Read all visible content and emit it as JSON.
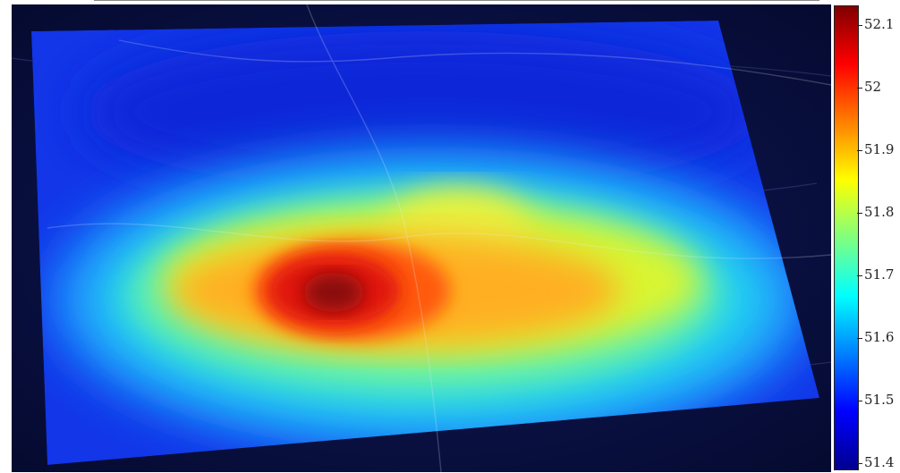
{
  "chart_data": {
    "type": "heatmap",
    "title": "",
    "xlabel": "",
    "ylabel": "",
    "colormap": "jet",
    "background": "satellite-map",
    "clim": [
      51.4,
      52.1
    ],
    "colorbar": {
      "placement": "right",
      "ticks": [
        52.1,
        52,
        51.9,
        51.8,
        51.7,
        51.6,
        51.5,
        51.4
      ],
      "tick_labels": [
        "52.1",
        "52",
        "51.9",
        "51.8",
        "51.7",
        "51.6",
        "51.5",
        "51.4"
      ]
    },
    "peak_value": 52.1,
    "min_value": 51.4
  }
}
